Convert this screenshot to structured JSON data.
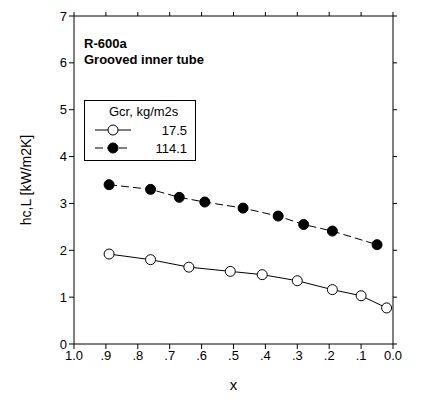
{
  "chart_data": {
    "type": "line",
    "annotations": [
      "R-600a",
      "Grooved inner tube"
    ],
    "x_label": "x",
    "y_label": "hc,L  [kW/m2K]",
    "legend_title": "Gcr, kg/m2s",
    "legend": "upper left",
    "xlim": [
      0,
      1
    ],
    "ylim": [
      0,
      7
    ],
    "x_reversed": true,
    "xticks": [
      {
        "value": 1,
        "label": "1.0"
      },
      {
        "value": 0.9,
        "label": ".9"
      },
      {
        "value": 0.8,
        "label": ".8"
      },
      {
        "value": 0.7,
        "label": ".7"
      },
      {
        "value": 0.6,
        "label": ".6"
      },
      {
        "value": 0.5,
        "label": ".5"
      },
      {
        "value": 0.4,
        "label": ".4"
      },
      {
        "value": 0.3,
        "label": ".3"
      },
      {
        "value": 0.2,
        "label": ".2"
      },
      {
        "value": 0.1,
        "label": ".1"
      },
      {
        "value": 0,
        "label": "0.0"
      }
    ],
    "yticks": [
      0,
      1,
      2,
      3,
      4,
      5,
      6,
      7
    ],
    "grid": false,
    "series": [
      {
        "name": "17.5",
        "color": "#000000",
        "marker": "circle-open",
        "line_style": "solid",
        "x": [
          0.89,
          0.76,
          0.64,
          0.51,
          0.41,
          0.3,
          0.19,
          0.1,
          0.02
        ],
        "values": [
          1.92,
          1.8,
          1.64,
          1.55,
          1.48,
          1.35,
          1.16,
          1.03,
          0.77
        ]
      },
      {
        "name": "114.1",
        "color": "#000000",
        "marker": "circle-filled",
        "line_style": "dashed",
        "x": [
          0.89,
          0.76,
          0.67,
          0.59,
          0.47,
          0.36,
          0.28,
          0.19,
          0.05
        ],
        "values": [
          3.4,
          3.3,
          3.13,
          3.03,
          2.9,
          2.73,
          2.55,
          2.41,
          2.12
        ]
      }
    ]
  }
}
